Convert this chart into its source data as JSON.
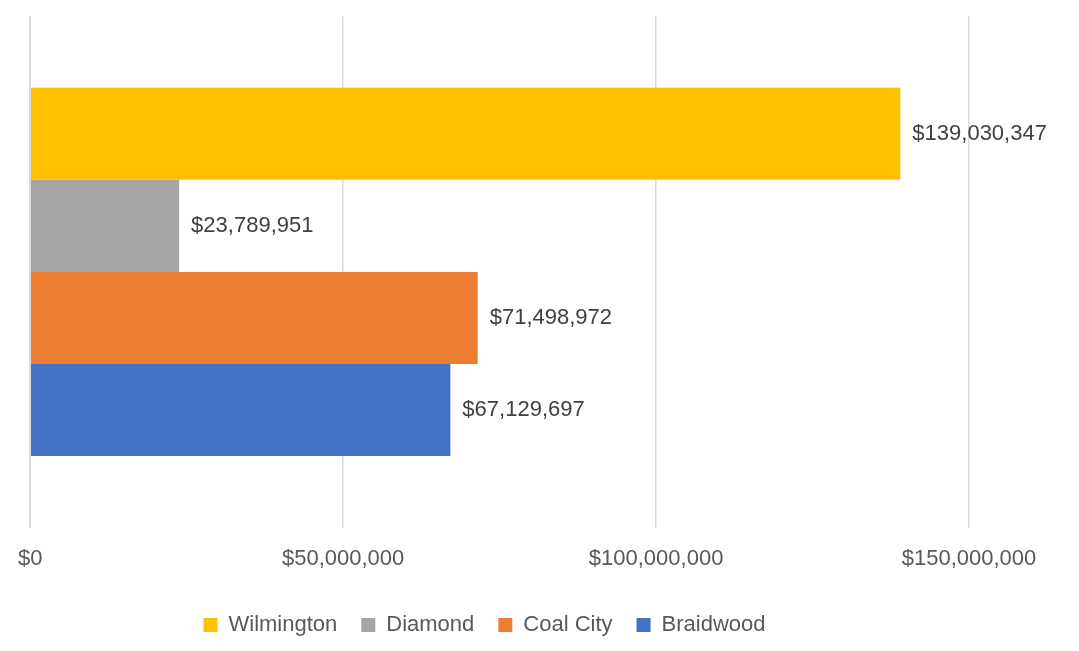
{
  "chart_data": {
    "type": "bar",
    "orientation": "horizontal",
    "categories": [
      null
    ],
    "series": [
      {
        "name": "Wilmington",
        "color": "#ffc000",
        "values": [
          139030347
        ],
        "value_labels": [
          "$139,030,347"
        ]
      },
      {
        "name": "Diamond",
        "color": "#a5a5a5",
        "values": [
          23789951
        ],
        "value_labels": [
          "$23,789,951"
        ]
      },
      {
        "name": "Coal City",
        "color": "#ed7d31",
        "values": [
          71498972
        ],
        "value_labels": [
          "$71,498,972"
        ]
      },
      {
        "name": "Braidwood",
        "color": "#4472c4",
        "values": [
          67129697
        ],
        "value_labels": [
          "$67,129,697"
        ]
      }
    ],
    "xlim": [
      0,
      150000000
    ],
    "xticks": [
      {
        "value": 0,
        "label": "$0"
      },
      {
        "value": 50000000,
        "label": "$50,000,000"
      },
      {
        "value": 100000000,
        "label": "$100,000,000"
      },
      {
        "value": 150000000,
        "label": "$150,000,000"
      }
    ],
    "grid": "x",
    "legend": "bottom"
  }
}
